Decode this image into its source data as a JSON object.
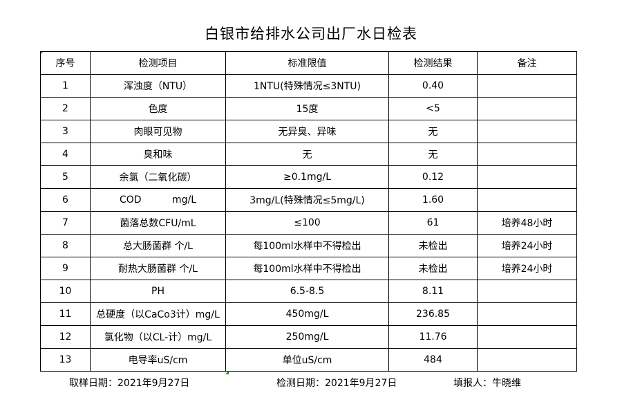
{
  "title": "白银市给排水公司出厂水日检表",
  "headers": [
    "序号",
    "检测项目",
    "标准限值",
    "检测结果",
    "备注"
  ],
  "rows": [
    [
      "1",
      "浑浊度（NTU）",
      "1NTU(特殊情况≤3NTU)",
      "0.40",
      ""
    ],
    [
      "2",
      "色度",
      "15度",
      "<5",
      ""
    ],
    [
      "3",
      "肉眼可见物",
      "无异臭、异味",
      "无",
      ""
    ],
    [
      "4",
      "臭和味",
      "无",
      "无",
      ""
    ],
    [
      "5",
      "余氯（二氧化碳）",
      "≥0.1mg/L",
      "0.12",
      ""
    ],
    [
      "6",
      "COD          mg/L",
      "3mg/L(特殊情况≤5mg/L)",
      "1.60",
      ""
    ],
    [
      "7",
      "菌落总数CFU/mL",
      "≤100",
      "61",
      "培养48小时"
    ],
    [
      "8",
      "总大肠菌群 个/L",
      "每100ml水样中不得检出",
      "未检出",
      "培养24小时"
    ],
    [
      "9",
      "耐热大肠菌群 个/L",
      "每100ml水样中不得检出",
      "未检出",
      "培养24小时"
    ],
    [
      "10",
      "PH",
      "6.5-8.5",
      "8.11",
      ""
    ],
    [
      "11",
      "总硬度（以CaCo3计）mg/L",
      "450mg/L",
      "236.85",
      ""
    ],
    [
      "12",
      "氯化物（以CL-计）mg/L",
      "250mg/L",
      "11.76",
      ""
    ],
    [
      "13",
      "电导率uS/cm",
      "单位uS/cm",
      "484",
      ""
    ]
  ],
  "footer": {
    "sample_date": "取样日期：2021年9月27日",
    "test_date": "检测日期：2021年9月27日",
    "reporter": "填报人：牛晓维"
  }
}
